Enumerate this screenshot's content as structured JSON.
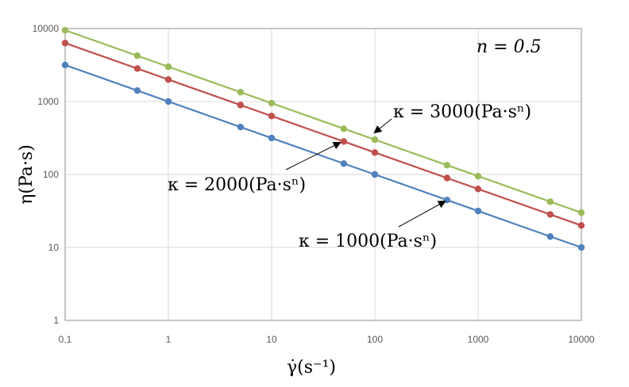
{
  "chart_data": {
    "type": "line",
    "title": "",
    "xlabel": "γ̇(s⁻¹)",
    "ylabel": "η(Pa·s)",
    "x_scale": "log",
    "y_scale": "log",
    "xlim": [
      0.1,
      10000
    ],
    "ylim": [
      1,
      10000
    ],
    "x_ticks": [
      "0.1",
      "1",
      "10",
      "100",
      "1000",
      "10000"
    ],
    "y_ticks": [
      "1",
      "10",
      "100",
      "1000",
      "10000"
    ],
    "grid": true,
    "legend": "none",
    "x": [
      0.1,
      0.5,
      1,
      5,
      10,
      50,
      100,
      500,
      1000,
      5000,
      10000
    ],
    "series": [
      {
        "label": "κ = 1000(Pa·sⁿ)",
        "color": "#4f81bd",
        "values": [
          3162,
          1414,
          1000,
          447,
          316,
          141,
          100,
          44.7,
          31.6,
          14.1,
          10
        ]
      },
      {
        "label": "κ = 2000(Pa·sⁿ)",
        "color": "#c0504d",
        "values": [
          6325,
          2828,
          2000,
          894,
          632,
          283,
          200,
          89.4,
          63.2,
          28.3,
          20
        ]
      },
      {
        "label": "κ = 3000(Pa·sⁿ)",
        "color": "#9bbb59",
        "values": [
          9487,
          4243,
          3000,
          1342,
          949,
          424,
          300,
          134,
          94.9,
          42.4,
          30
        ]
      }
    ],
    "annotations": {
      "n": "n = 0.5"
    }
  }
}
